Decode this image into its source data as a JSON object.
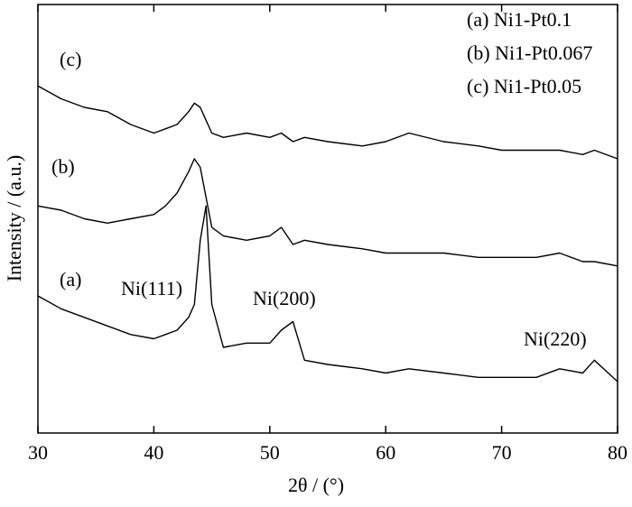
{
  "chart_data": {
    "type": "line",
    "xlabel": "2θ / (°)",
    "ylabel": "Intensity / (a.u.)",
    "x": [
      30,
      32,
      34,
      36,
      38,
      40,
      41,
      42,
      43,
      43.5,
      44,
      44.5,
      45,
      46,
      48,
      50,
      51,
      52,
      53,
      55,
      58,
      60,
      62,
      65,
      68,
      70,
      73,
      75,
      77,
      78,
      80
    ],
    "series": [
      {
        "name": "(a) Ni1-Pt0.1",
        "color": "#000000",
        "values": [
          32,
          29,
          27,
          25,
          23,
          22,
          23,
          24,
          27,
          30,
          45,
          53,
          30,
          20,
          21,
          21,
          24,
          26,
          17,
          16,
          15,
          14,
          15,
          14,
          13,
          13,
          13,
          15,
          14,
          17,
          12
        ]
      },
      {
        "name": "(b) Ni1-Pt0.067",
        "color": "#000000",
        "values": [
          53,
          52,
          50,
          49,
          50,
          51,
          53,
          56,
          61,
          64,
          62,
          55,
          48,
          46,
          45,
          46,
          48,
          44,
          45,
          44,
          43,
          42,
          42,
          42,
          41,
          41,
          41,
          42,
          40,
          40,
          39
        ]
      },
      {
        "name": "(c) Ni1-Pt0.05",
        "color": "#000000",
        "values": [
          81,
          78,
          76,
          75,
          72,
          70,
          71,
          72,
          75,
          77,
          76,
          73,
          70,
          69,
          70,
          69,
          70,
          68,
          69,
          68,
          67,
          68,
          70,
          68,
          67,
          66,
          66,
          66,
          65,
          66,
          64
        ]
      }
    ],
    "curve_labels": [
      "(a)",
      "(b)",
      "(c)"
    ],
    "annotations": [
      "Ni(111)",
      "Ni(200)",
      "Ni(220)"
    ],
    "xlim": [
      30,
      80
    ],
    "xticks": [
      30,
      40,
      50,
      60,
      70,
      80
    ],
    "ylim": [
      0,
      100
    ]
  }
}
